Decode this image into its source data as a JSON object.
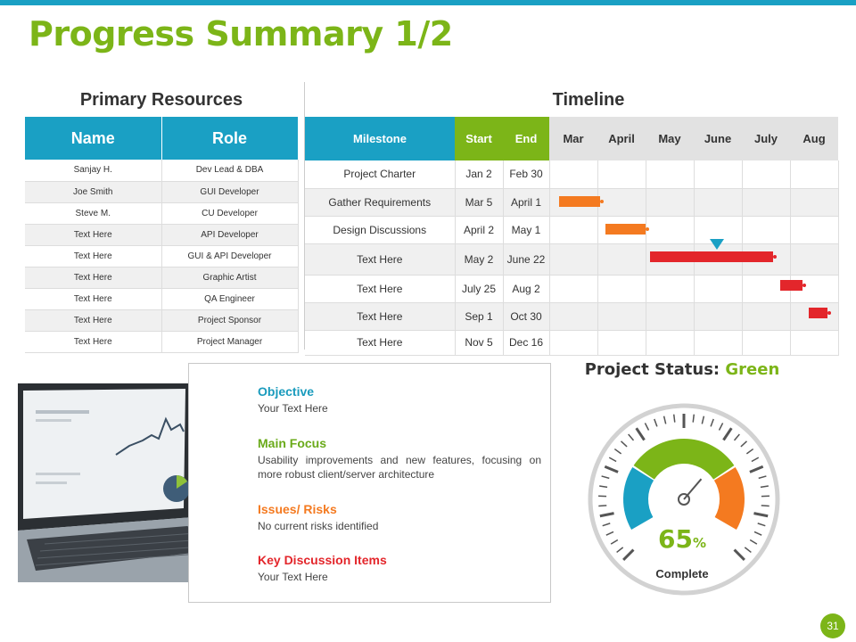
{
  "title": "Progress Summary 1/2",
  "resources": {
    "heading": "Primary Resources",
    "headers": [
      "Name",
      "Role"
    ],
    "rows": [
      {
        "name": "Sanjay H.",
        "role": "Dev Lead & DBA"
      },
      {
        "name": "Joe Smith",
        "role": "GUI Developer"
      },
      {
        "name": "Steve M.",
        "role": "CU Developer"
      },
      {
        "name": "Text Here",
        "role": "API Developer"
      },
      {
        "name": "Text Here",
        "role": "GUI & API Developer"
      },
      {
        "name": "Text Here",
        "role": "Graphic Artist"
      },
      {
        "name": "Text Here",
        "role": "QA Engineer"
      },
      {
        "name": "Text Here",
        "role": "Project Sponsor"
      },
      {
        "name": "Text Here",
        "role": "Project Manager"
      }
    ]
  },
  "timeline": {
    "heading": "Timeline",
    "headers": {
      "milestone": "Milestone",
      "start": "Start",
      "end": "End"
    },
    "months": [
      "Mar",
      "April",
      "May",
      "June",
      "July",
      "Aug"
    ],
    "rows": [
      {
        "milestone": "Project Charter",
        "start": "Jan 2",
        "end": "Feb 30"
      },
      {
        "milestone": "Gather Requirements",
        "start": "Mar 5",
        "end": "April 1"
      },
      {
        "milestone": "Design Discussions",
        "start": "April 2",
        "end": "May 1"
      },
      {
        "milestone": "Text Here",
        "start": "May 2",
        "end": "June 22"
      },
      {
        "milestone": "Text Here",
        "start": "July 25",
        "end": "Aug 2"
      },
      {
        "milestone": "Text Here",
        "start": "Sep 1",
        "end": "Oct 30"
      },
      {
        "milestone": "Text Here",
        "start": "Nov 5",
        "end": "Dec 16"
      }
    ],
    "colors": {
      "orange": "#f47a20",
      "red": "#e3262b",
      "marker": "#1aa0c4"
    }
  },
  "info": {
    "objective": {
      "title": "Objective",
      "text": "Your Text Here",
      "color": "#1a9bbd"
    },
    "focus": {
      "title": "Main Focus",
      "text": "Usability improvements and new features, focusing on more robust client/server architecture",
      "color": "#6aaa1a"
    },
    "risks": {
      "title": "Issues/ Risks",
      "text": "No current risks identified",
      "color": "#f47a20"
    },
    "discussion": {
      "title": "Key Discussion Items",
      "text": "Your Text Here",
      "color": "#e3262b"
    }
  },
  "status": {
    "label": "Project Status:",
    "value": "Green",
    "percent": "65",
    "unit": "%",
    "complete_label": "Complete",
    "percent_value": 65
  },
  "page_number": "31",
  "colors": {
    "accent_blue": "#1aa0c4",
    "accent_green": "#7cb518",
    "accent_orange": "#f47a20",
    "accent_red": "#e3262b"
  }
}
